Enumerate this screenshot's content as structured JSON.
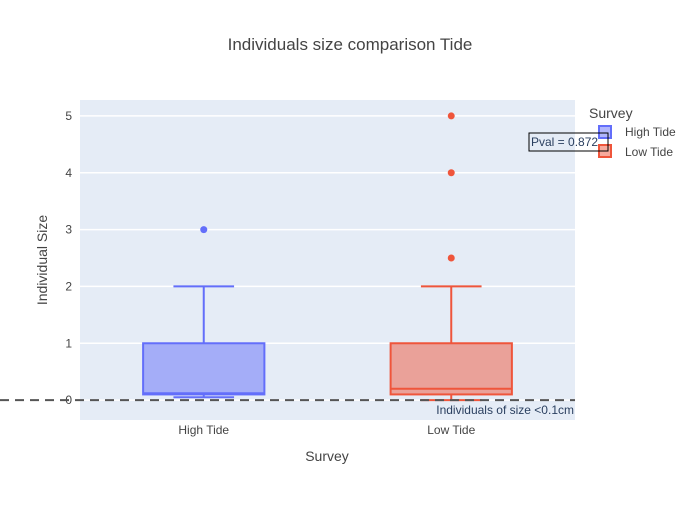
{
  "chart_data": {
    "type": "box",
    "title": "Individuals size comparison Tide",
    "xlabel": "Survey",
    "ylabel": "Individual Size",
    "ylim": [
      -0.35,
      5.28
    ],
    "yticks": [
      0,
      1,
      2,
      3,
      4,
      5
    ],
    "categories": [
      "High Tide",
      "Low Tide"
    ],
    "legend": {
      "title": "Survey",
      "placement": "top-right",
      "entries": [
        "High Tide",
        "Low Tide"
      ]
    },
    "series": [
      {
        "name": "High Tide",
        "color": "#636efa",
        "fill": "rgba(99,110,250,0.5)",
        "lower_fence": 0.05,
        "q1": 0.1,
        "median": 0.12,
        "q3": 1.0,
        "upper_fence": 2.0,
        "outliers": [
          3.0
        ]
      },
      {
        "name": "Low Tide",
        "color": "#ef553b",
        "fill": "rgba(239,85,59,0.5)",
        "lower_fence": 0.0,
        "q1": 0.1,
        "median": 0.2,
        "q3": 1.0,
        "upper_fence": 2.0,
        "outliers": [
          2.5,
          4.0,
          5.0
        ]
      }
    ],
    "annotations": {
      "reference_line_y": 0,
      "reference_line_label": "Individuals of size <0.1cm",
      "pval_label": "Pval = 0.872"
    }
  }
}
